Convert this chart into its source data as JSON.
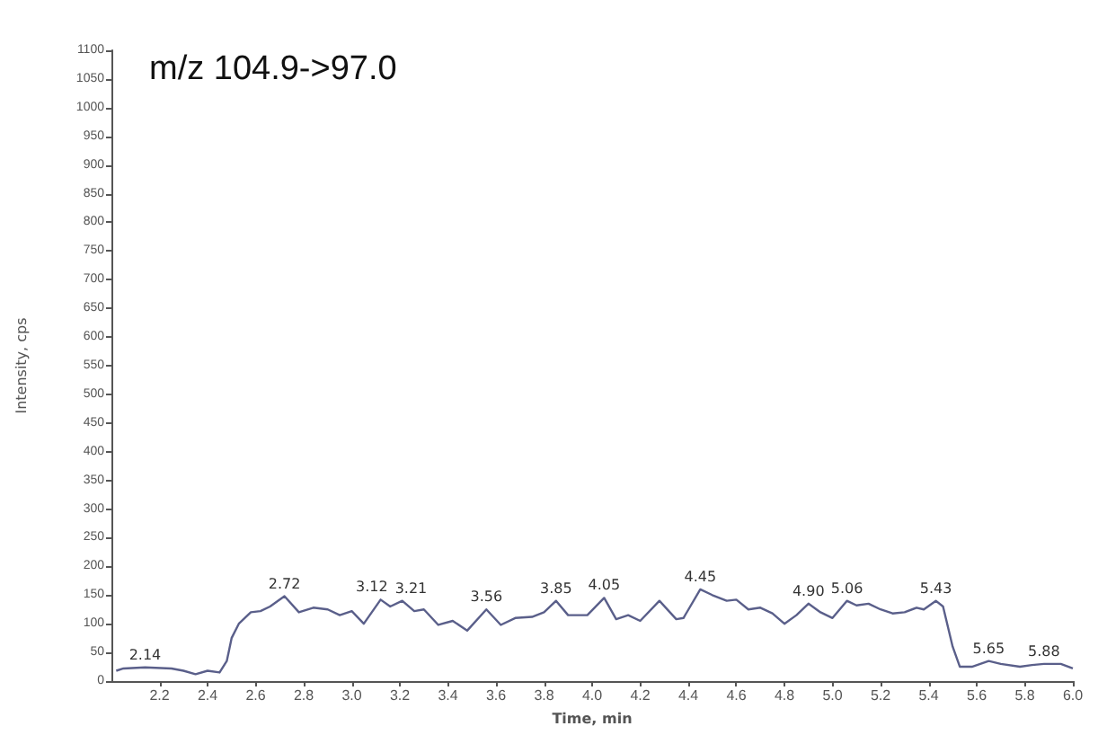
{
  "chart_data": {
    "type": "line",
    "title": "m/z 104.9->97.0",
    "xlabel": "Time, min",
    "ylabel": "Intensity, cps",
    "x": [
      2.02,
      2.05,
      2.14,
      2.25,
      2.3,
      2.35,
      2.4,
      2.45,
      2.48,
      2.5,
      2.53,
      2.58,
      2.62,
      2.66,
      2.72,
      2.78,
      2.84,
      2.9,
      2.95,
      3.0,
      3.05,
      3.12,
      3.16,
      3.21,
      3.26,
      3.3,
      3.36,
      3.42,
      3.48,
      3.56,
      3.62,
      3.68,
      3.75,
      3.8,
      3.85,
      3.9,
      3.98,
      4.05,
      4.1,
      4.15,
      4.2,
      4.28,
      4.35,
      4.38,
      4.45,
      4.5,
      4.56,
      4.6,
      4.65,
      4.7,
      4.75,
      4.8,
      4.85,
      4.9,
      4.95,
      5.0,
      5.06,
      5.1,
      5.15,
      5.2,
      5.25,
      5.3,
      5.35,
      5.38,
      5.43,
      5.46,
      5.5,
      5.53,
      5.58,
      5.65,
      5.7,
      5.78,
      5.83,
      5.88,
      5.95,
      6.0
    ],
    "series": [
      {
        "color": "#5a5f8a",
        "values": [
          18,
          22,
          24,
          22,
          18,
          12,
          18,
          15,
          35,
          75,
          100,
          120,
          122,
          130,
          148,
          120,
          128,
          125,
          115,
          122,
          100,
          142,
          130,
          140,
          122,
          125,
          98,
          105,
          88,
          125,
          98,
          110,
          112,
          120,
          140,
          115,
          115,
          145,
          108,
          115,
          105,
          140,
          108,
          110,
          160,
          150,
          140,
          142,
          125,
          128,
          118,
          100,
          115,
          135,
          120,
          110,
          140,
          132,
          135,
          125,
          118,
          120,
          128,
          125,
          140,
          130,
          60,
          25,
          25,
          35,
          30,
          25,
          28,
          30,
          30,
          22
        ]
      }
    ],
    "annotations": [
      {
        "text": "2.14",
        "x": 2.14,
        "y": 24
      },
      {
        "text": "2.72",
        "x": 2.72,
        "y": 148
      },
      {
        "text": "3.12",
        "x": 3.12,
        "y": 142
      },
      {
        "text": "3.21",
        "x": 3.21,
        "y": 140
      },
      {
        "text": "3.56",
        "x": 3.56,
        "y": 125
      },
      {
        "text": "3.85",
        "x": 3.85,
        "y": 140
      },
      {
        "text": "4.05",
        "x": 4.05,
        "y": 145
      },
      {
        "text": "4.45",
        "x": 4.45,
        "y": 160
      },
      {
        "text": "4.90",
        "x": 4.9,
        "y": 135
      },
      {
        "text": "5.06",
        "x": 5.06,
        "y": 140
      },
      {
        "text": "5.43",
        "x": 5.43,
        "y": 140
      },
      {
        "text": "5.65",
        "x": 5.65,
        "y": 35
      },
      {
        "text": "5.88",
        "x": 5.88,
        "y": 30
      }
    ],
    "xlim": [
      2.0,
      6.0
    ],
    "xticks": [
      2.2,
      2.4,
      2.6,
      2.8,
      {
        "value": 3,
        "label": "3.0"
      },
      3.2,
      3.4,
      3.6,
      3.8,
      {
        "value": 4,
        "label": "4.0"
      },
      4.2,
      4.4,
      4.6,
      4.8,
      {
        "value": 5,
        "label": "5.0"
      },
      5.2,
      5.4,
      5.6,
      5.8,
      {
        "value": 6,
        "label": "6.0"
      }
    ],
    "ylim": [
      0,
      1100
    ],
    "yticks": [
      0,
      50,
      100,
      150,
      200,
      250,
      300,
      350,
      400,
      450,
      500,
      550,
      600,
      650,
      700,
      750,
      800,
      850,
      900,
      950,
      1000,
      1050,
      1100
    ],
    "grid": false,
    "marker": "none",
    "line_style": "solid"
  }
}
